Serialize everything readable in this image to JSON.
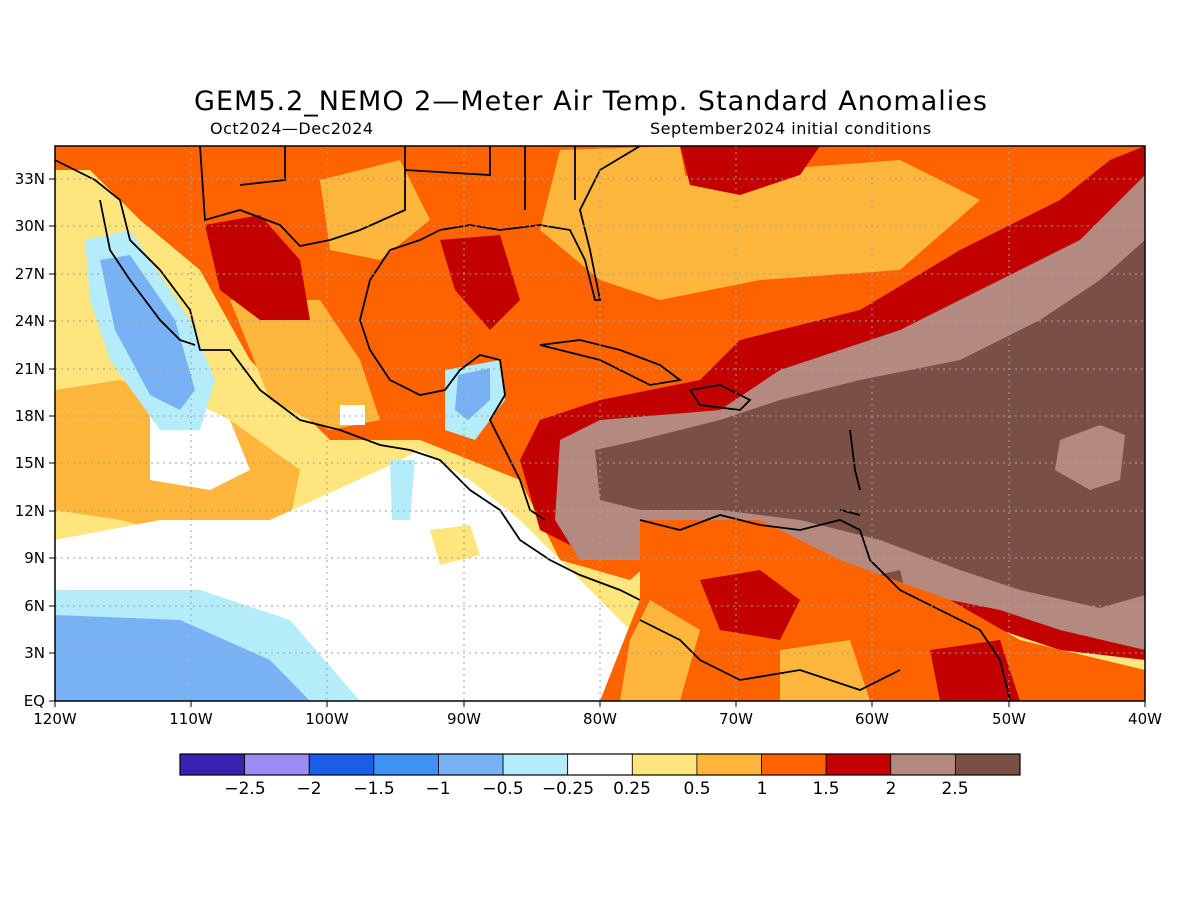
{
  "title": "GEM5.2_NEMO 2—Meter Air Temp. Standard Anomalies",
  "period": "Oct2024—Dec2024",
  "initial_conditions": "September2024 initial conditions",
  "lat_labels": [
    "33N",
    "30N",
    "27N",
    "24N",
    "21N",
    "18N",
    "15N",
    "12N",
    "9N",
    "6N",
    "3N",
    "EQ"
  ],
  "lon_labels": [
    "120W",
    "110W",
    "100W",
    "90W",
    "80W",
    "70W",
    "60W",
    "50W",
    "40W"
  ],
  "colorbar": {
    "labels": [
      "−2.5",
      "−2",
      "−1.5",
      "−1",
      "−0.5",
      "−0.25",
      "0.25",
      "0.5",
      "1",
      "1.5",
      "2",
      "2.5"
    ],
    "colors": [
      "#3a22b0",
      "#9b8cf5",
      "#1a5ee8",
      "#3f92f2",
      "#78b2f4",
      "#b4ecfa",
      "#ffffff",
      "#ffe57d",
      "#ffb63d",
      "#ff6300",
      "#c20000",
      "#b48a80",
      "#7a5046"
    ]
  }
}
